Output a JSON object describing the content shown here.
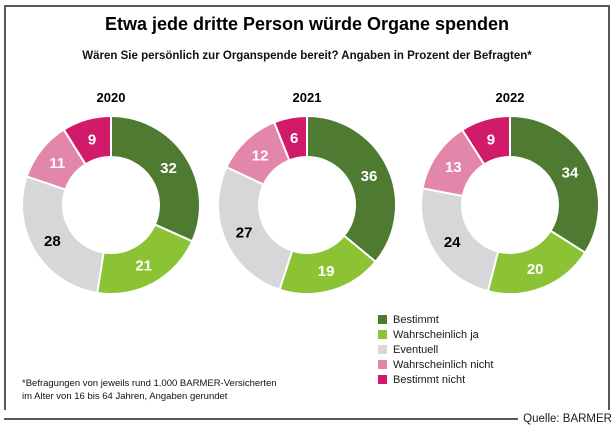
{
  "header": {
    "title": "Etwa jede dritte Person würde Organe spenden",
    "subtitle": "Wären Sie persönlich zur Organspende bereit? Angaben in Prozent der Befragten*"
  },
  "legend": [
    {
      "label": "Bestimmt",
      "color": "#4e7b31"
    },
    {
      "label": "Wahrscheinlich ja",
      "color": "#8bc334"
    },
    {
      "label": "Eventuell",
      "color": "#d7d7d9"
    },
    {
      "label": "Wahrscheinlich nicht",
      "color": "#e286aa"
    },
    {
      "label": "Bestimmt nicht",
      "color": "#d21a6b"
    }
  ],
  "footnote": {
    "line1": "*Befragungen von jeweils rund 1.000 BARMER-Versicherten",
    "line2": "im Alter von 16 bis 64 Jahren, Angaben gerundet"
  },
  "source": "Quelle: BARMER",
  "frame_color": "#59595b",
  "chart_data": {
    "type": "pie",
    "variant": "donut",
    "title": "Etwa jede dritte Person würde Organe spenden",
    "subtitle": "Wären Sie persönlich zur Organspende bereit? Angaben in Prozent der Befragten*",
    "unit": "percent",
    "categories": [
      "Bestimmt",
      "Wahrscheinlich ja",
      "Eventuell",
      "Wahrscheinlich nicht",
      "Bestimmt nicht"
    ],
    "colors": [
      "#4e7b31",
      "#8bc334",
      "#d7d7d9",
      "#e286aa",
      "#d21a6b"
    ],
    "label_text_colors": [
      "#ffffff",
      "#ffffff",
      "#000000",
      "#ffffff",
      "#ffffff"
    ],
    "charts": [
      {
        "year": "2020",
        "values": [
          32,
          21,
          28,
          11,
          9
        ]
      },
      {
        "year": "2021",
        "values": [
          36,
          19,
          27,
          12,
          6
        ]
      },
      {
        "year": "2022",
        "values": [
          34,
          20,
          24,
          13,
          9
        ]
      }
    ],
    "start_angle_deg": -90,
    "direction": "clockwise",
    "legend_position": "bottom-right"
  }
}
